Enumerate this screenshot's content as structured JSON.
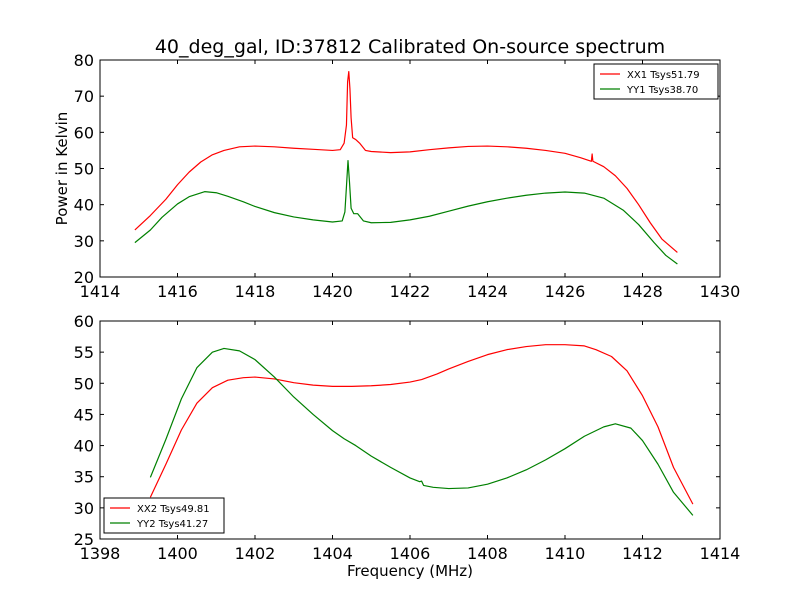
{
  "chart_data": [
    {
      "type": "line",
      "title": "40_deg_gal, ID:37812 Calibrated On-source spectrum",
      "xlabel": "",
      "ylabel": "Power in Kelvin",
      "xlim": [
        1414,
        1430
      ],
      "ylim": [
        20,
        80
      ],
      "xticks": [
        "1414",
        "1416",
        "1418",
        "1420",
        "1422",
        "1424",
        "1426",
        "1428",
        "1430"
      ],
      "yticks": [
        "20",
        "30",
        "40",
        "50",
        "60",
        "70",
        "80"
      ],
      "grid": false,
      "legend_position": "top-right",
      "series": [
        {
          "name": "XX1 Tsys51.79",
          "color": "#ff0000",
          "points": [
            [
              1414.9,
              33.0
            ],
            [
              1415.3,
              37.0
            ],
            [
              1415.7,
              41.5
            ],
            [
              1416.0,
              45.5
            ],
            [
              1416.3,
              49.0
            ],
            [
              1416.6,
              51.8
            ],
            [
              1416.9,
              53.8
            ],
            [
              1417.2,
              55.0
            ],
            [
              1417.6,
              56.0
            ],
            [
              1418.0,
              56.2
            ],
            [
              1418.5,
              56.0
            ],
            [
              1419.0,
              55.6
            ],
            [
              1419.5,
              55.3
            ],
            [
              1420.0,
              55.0
            ],
            [
              1420.2,
              55.2
            ],
            [
              1420.3,
              57.0
            ],
            [
              1420.36,
              62.0
            ],
            [
              1420.39,
              74.0
            ],
            [
              1420.42,
              76.8
            ],
            [
              1420.45,
              72.0
            ],
            [
              1420.48,
              64.0
            ],
            [
              1420.52,
              58.5
            ],
            [
              1420.6,
              58.0
            ],
            [
              1420.7,
              57.0
            ],
            [
              1420.85,
              55.0
            ],
            [
              1421.0,
              54.7
            ],
            [
              1421.5,
              54.4
            ],
            [
              1422.0,
              54.6
            ],
            [
              1422.5,
              55.2
            ],
            [
              1423.0,
              55.7
            ],
            [
              1423.5,
              56.1
            ],
            [
              1424.0,
              56.2
            ],
            [
              1424.5,
              56.0
            ],
            [
              1425.0,
              55.6
            ],
            [
              1425.5,
              55.0
            ],
            [
              1426.0,
              54.2
            ],
            [
              1426.4,
              53.0
            ],
            [
              1426.68,
              52.0
            ],
            [
              1426.7,
              54.0
            ],
            [
              1426.72,
              52.0
            ],
            [
              1427.0,
              50.5
            ],
            [
              1427.3,
              48.0
            ],
            [
              1427.6,
              44.5
            ],
            [
              1427.9,
              40.0
            ],
            [
              1428.2,
              35.0
            ],
            [
              1428.5,
              30.5
            ],
            [
              1428.9,
              26.8
            ]
          ]
        },
        {
          "name": "YY1 Tsys38.70",
          "color": "#008000",
          "points": [
            [
              1414.9,
              29.5
            ],
            [
              1415.3,
              33.0
            ],
            [
              1415.6,
              36.5
            ],
            [
              1416.0,
              40.2
            ],
            [
              1416.3,
              42.2
            ],
            [
              1416.7,
              43.6
            ],
            [
              1417.0,
              43.3
            ],
            [
              1417.3,
              42.3
            ],
            [
              1417.7,
              40.8
            ],
            [
              1418.0,
              39.5
            ],
            [
              1418.5,
              37.8
            ],
            [
              1419.0,
              36.6
            ],
            [
              1419.5,
              35.8
            ],
            [
              1420.0,
              35.2
            ],
            [
              1420.25,
              35.5
            ],
            [
              1420.32,
              38.0
            ],
            [
              1420.36,
              45.0
            ],
            [
              1420.4,
              52.2
            ],
            [
              1420.44,
              46.0
            ],
            [
              1420.48,
              39.0
            ],
            [
              1420.55,
              37.5
            ],
            [
              1420.65,
              37.5
            ],
            [
              1420.8,
              35.5
            ],
            [
              1421.0,
              35.0
            ],
            [
              1421.5,
              35.1
            ],
            [
              1422.0,
              35.8
            ],
            [
              1422.5,
              36.8
            ],
            [
              1423.0,
              38.2
            ],
            [
              1423.5,
              39.6
            ],
            [
              1424.0,
              40.8
            ],
            [
              1424.5,
              41.8
            ],
            [
              1425.0,
              42.6
            ],
            [
              1425.5,
              43.2
            ],
            [
              1426.0,
              43.5
            ],
            [
              1426.5,
              43.2
            ],
            [
              1427.0,
              41.8
            ],
            [
              1427.5,
              38.5
            ],
            [
              1427.9,
              34.5
            ],
            [
              1428.3,
              29.5
            ],
            [
              1428.6,
              26.0
            ],
            [
              1428.9,
              23.6
            ]
          ]
        }
      ]
    },
    {
      "type": "line",
      "title": "",
      "xlabel": "Frequency (MHz)",
      "ylabel": "",
      "xlim": [
        1398,
        1414
      ],
      "ylim": [
        25,
        60
      ],
      "xticks": [
        "1398",
        "1400",
        "1402",
        "1404",
        "1406",
        "1408",
        "1410",
        "1412",
        "1414"
      ],
      "yticks": [
        "25",
        "30",
        "35",
        "40",
        "45",
        "50",
        "55",
        "60"
      ],
      "grid": false,
      "legend_position": "bottom-left",
      "series": [
        {
          "name": "XX2 Tsys49.81",
          "color": "#ff0000",
          "points": [
            [
              1399.3,
              31.7
            ],
            [
              1399.7,
              37.0
            ],
            [
              1400.1,
              42.5
            ],
            [
              1400.5,
              46.8
            ],
            [
              1400.9,
              49.3
            ],
            [
              1401.3,
              50.5
            ],
            [
              1401.7,
              50.9
            ],
            [
              1402.0,
              51.0
            ],
            [
              1402.5,
              50.7
            ],
            [
              1403.0,
              50.1
            ],
            [
              1403.5,
              49.7
            ],
            [
              1404.0,
              49.5
            ],
            [
              1404.5,
              49.5
            ],
            [
              1405.0,
              49.6
            ],
            [
              1405.5,
              49.8
            ],
            [
              1406.0,
              50.2
            ],
            [
              1406.3,
              50.6
            ],
            [
              1406.7,
              51.5
            ],
            [
              1407.0,
              52.3
            ],
            [
              1407.5,
              53.5
            ],
            [
              1408.0,
              54.6
            ],
            [
              1408.5,
              55.4
            ],
            [
              1409.0,
              55.9
            ],
            [
              1409.5,
              56.2
            ],
            [
              1410.0,
              56.2
            ],
            [
              1410.5,
              56.0
            ],
            [
              1410.8,
              55.4
            ],
            [
              1411.2,
              54.3
            ],
            [
              1411.6,
              52.0
            ],
            [
              1412.0,
              48.0
            ],
            [
              1412.4,
              43.0
            ],
            [
              1412.8,
              36.5
            ],
            [
              1413.3,
              30.6
            ]
          ]
        },
        {
          "name": "YY2 Tsys41.27",
          "color": "#008000",
          "points": [
            [
              1399.3,
              34.9
            ],
            [
              1399.7,
              41.0
            ],
            [
              1400.1,
              47.5
            ],
            [
              1400.5,
              52.5
            ],
            [
              1400.9,
              55.0
            ],
            [
              1401.2,
              55.6
            ],
            [
              1401.6,
              55.2
            ],
            [
              1402.0,
              53.8
            ],
            [
              1402.5,
              51.0
            ],
            [
              1403.0,
              47.8
            ],
            [
              1403.5,
              45.0
            ],
            [
              1404.0,
              42.4
            ],
            [
              1404.3,
              41.1
            ],
            [
              1404.6,
              40.0
            ],
            [
              1405.0,
              38.3
            ],
            [
              1405.5,
              36.5
            ],
            [
              1406.0,
              34.8
            ],
            [
              1406.25,
              34.2
            ],
            [
              1406.3,
              34.3
            ],
            [
              1406.35,
              33.6
            ],
            [
              1406.6,
              33.3
            ],
            [
              1407.0,
              33.1
            ],
            [
              1407.5,
              33.2
            ],
            [
              1408.0,
              33.8
            ],
            [
              1408.5,
              34.8
            ],
            [
              1409.0,
              36.1
            ],
            [
              1409.5,
              37.7
            ],
            [
              1410.0,
              39.5
            ],
            [
              1410.5,
              41.5
            ],
            [
              1411.0,
              43.0
            ],
            [
              1411.3,
              43.5
            ],
            [
              1411.7,
              42.8
            ],
            [
              1412.0,
              40.8
            ],
            [
              1412.4,
              37.0
            ],
            [
              1412.8,
              32.5
            ],
            [
              1413.3,
              28.8
            ]
          ]
        }
      ]
    }
  ]
}
